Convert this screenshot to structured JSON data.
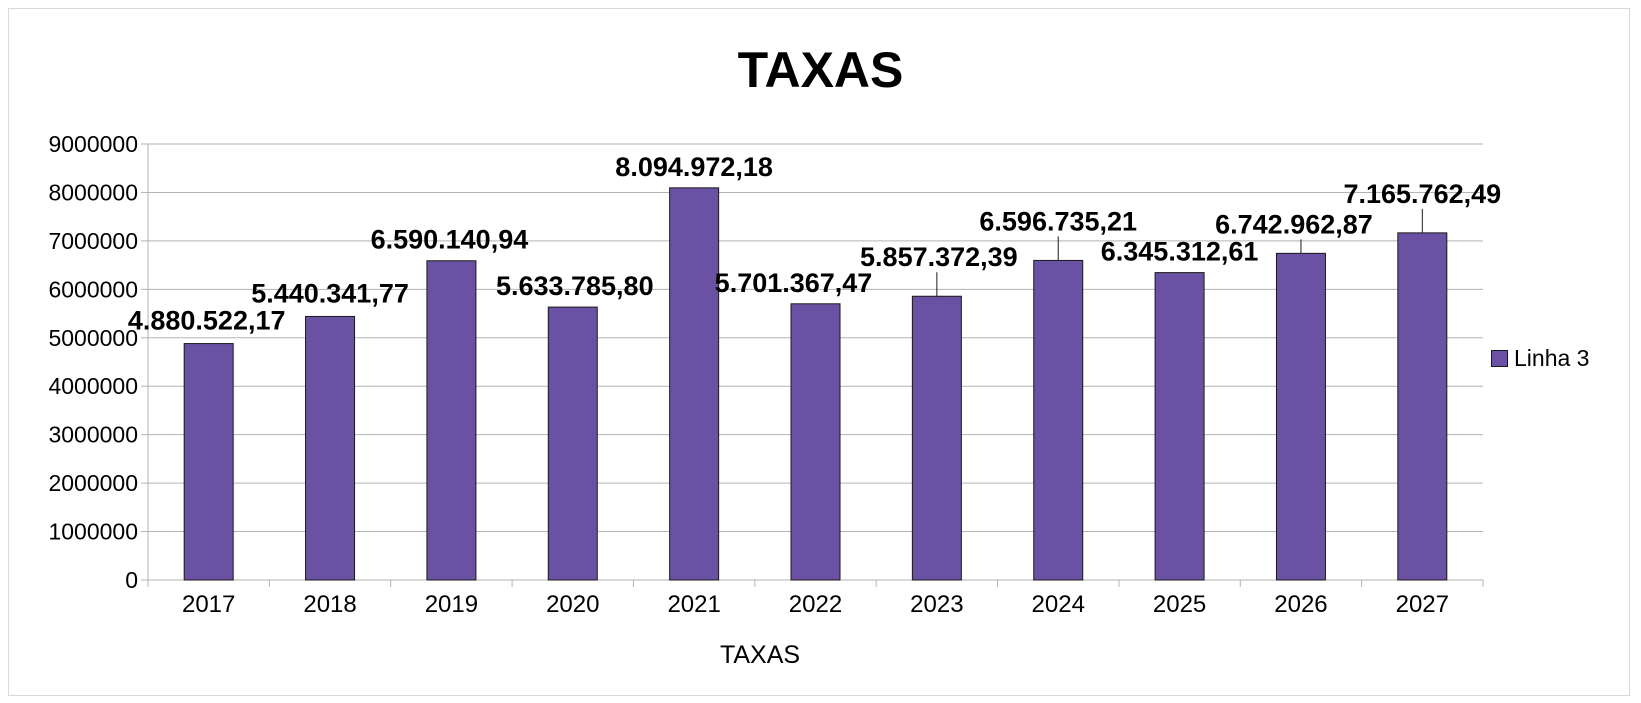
{
  "chart_data": {
    "type": "bar",
    "title": "TAXAS",
    "xlabel": "TAXAS",
    "ylabel": "",
    "categories": [
      "2017",
      "2018",
      "2019",
      "2020",
      "2021",
      "2022",
      "2023",
      "2024",
      "2025",
      "2026",
      "2027"
    ],
    "series": [
      {
        "name": "Linha 3",
        "color": "#6a51a3",
        "values": [
          4880522.17,
          5440341.77,
          6590140.94,
          5633785.8,
          8094972.18,
          5701367.47,
          5857372.39,
          6596735.21,
          6345312.61,
          6742962.87,
          7165762.49
        ],
        "data_labels": [
          "4.880.522,17",
          "5.440.341,77",
          "6.590.140,94",
          "5.633.785,80",
          "8.094.972,18",
          "5.701.367,47",
          "5.857.372,39",
          "6.596.735,21",
          "6.345.312,61",
          "6.742.962,87",
          "7.165.762,49"
        ]
      }
    ],
    "y_ticks": [
      "0",
      "1000000",
      "2000000",
      "3000000",
      "4000000",
      "5000000",
      "6000000",
      "7000000",
      "8000000",
      "9000000"
    ],
    "ylim": [
      0,
      9000000
    ],
    "grid": true,
    "legend_position": "right"
  }
}
